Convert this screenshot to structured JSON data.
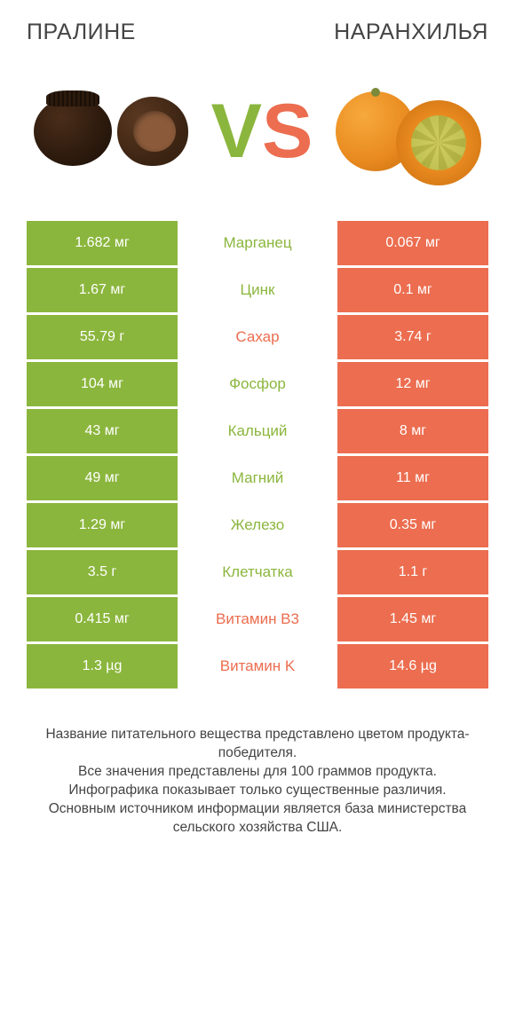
{
  "colors": {
    "green": "#8bb63d",
    "orange": "#ec6d4f",
    "text": "#444444",
    "white": "#ffffff",
    "background": "#ffffff"
  },
  "title_left": "ПРАЛИНЕ",
  "title_right": "НАРАНХИЛЬЯ",
  "vs": {
    "v": "V",
    "s": "S"
  },
  "rows": [
    {
      "left": "1.682 мг",
      "label": "Марганец",
      "right": "0.067 мг",
      "winner": "left"
    },
    {
      "left": "1.67 мг",
      "label": "Цинк",
      "right": "0.1 мг",
      "winner": "left"
    },
    {
      "left": "55.79 г",
      "label": "Сахар",
      "right": "3.74 г",
      "winner": "right"
    },
    {
      "left": "104 мг",
      "label": "Фосфор",
      "right": "12 мг",
      "winner": "left"
    },
    {
      "left": "43 мг",
      "label": "Кальций",
      "right": "8 мг",
      "winner": "left"
    },
    {
      "left": "49 мг",
      "label": "Магний",
      "right": "11 мг",
      "winner": "left"
    },
    {
      "left": "1.29 мг",
      "label": "Железо",
      "right": "0.35 мг",
      "winner": "left"
    },
    {
      "left": "3.5 г",
      "label": "Клетчатка",
      "right": "1.1 г",
      "winner": "left"
    },
    {
      "left": "0.415 мг",
      "label": "Витамин B3",
      "right": "1.45 мг",
      "winner": "right"
    },
    {
      "left": "1.3 µg",
      "label": "Витамин K",
      "right": "14.6 µg",
      "winner": "right"
    }
  ],
  "footer_lines": [
    "Название питательного вещества представлено цветом продукта-победителя.",
    "Все значения представлены для 100 граммов продукта.",
    "Инфографика показывает только существенные различия.",
    "Основным источником информации является база министерства сельского хозяйства США."
  ]
}
